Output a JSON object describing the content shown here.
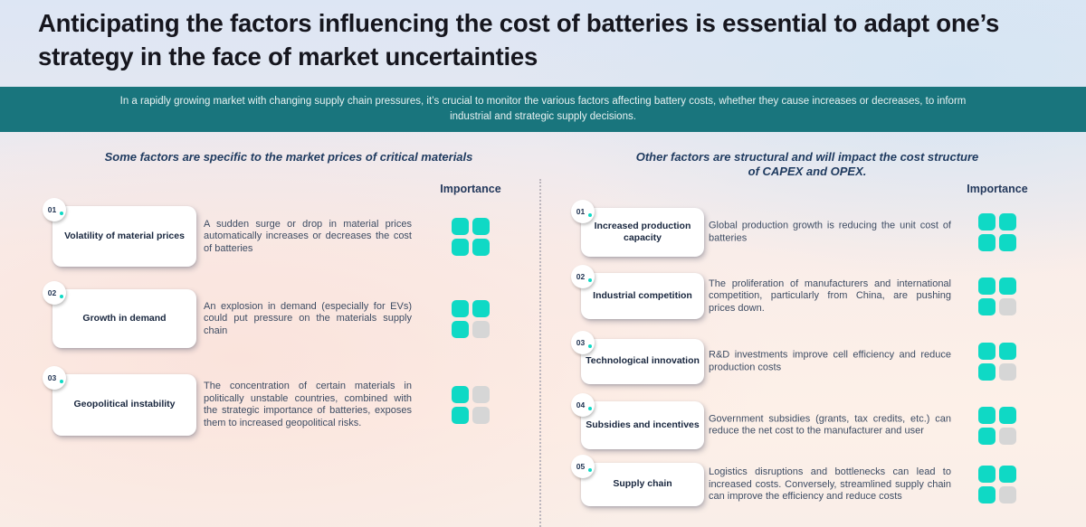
{
  "slide": {
    "title": "Anticipating the factors influencing the cost of batteries is essential to adapt one’s strategy in the face of market uncertainties",
    "banner": "In a rapidly growing market with changing supply chain pressures, it’s crucial to monitor the various factors affecting battery costs, whether they cause increases or decreases, to inform industrial and strategic supply decisions."
  },
  "columns": [
    {
      "header": "Some factors are specific to the market prices of critical materials",
      "importance_label": "Importance",
      "items": [
        {
          "number": "01",
          "label": "Volatility of material prices",
          "description": "A sudden surge or drop in material prices automatically increases or decreases the cost of batteries",
          "importance": [
            1,
            1,
            1,
            1
          ]
        },
        {
          "number": "02",
          "label": "Growth in demand",
          "description": "An explosion in demand (especially for EVs) could put pressure on the materials supply chain",
          "importance": [
            1,
            1,
            1,
            0
          ]
        },
        {
          "number": "03",
          "label": "Geopolitical instability",
          "description": "The concentration of certain materials in politically unstable countries, combined with the strategic importance of batteries, exposes them to increased geopolitical risks.",
          "importance": [
            1,
            0,
            1,
            0
          ]
        }
      ]
    },
    {
      "header": "Other factors are structural and will impact the cost structure of CAPEX and OPEX.",
      "importance_label": "Importance",
      "items": [
        {
          "number": "01",
          "label": "Increased production capacity",
          "description": "Global production growth is reducing the unit cost of batteries",
          "importance": [
            1,
            1,
            1,
            1
          ]
        },
        {
          "number": "02",
          "label": "Industrial competition",
          "description": "The proliferation of manufacturers and international competition, particularly from China, are pushing prices down.",
          "importance": [
            1,
            1,
            1,
            0
          ]
        },
        {
          "number": "03",
          "label": "Technological innovation",
          "description": "R&D investments improve cell efficiency and reduce production costs",
          "importance": [
            1,
            1,
            1,
            0
          ]
        },
        {
          "number": "04",
          "label": "Subsidies and incentives",
          "description": "Government subsidies (grants, tax credits, etc.) can reduce the net cost to the manufacturer and user",
          "importance": [
            1,
            1,
            1,
            0
          ]
        },
        {
          "number": "05",
          "label": "Supply chain",
          "description": "Logistics disruptions and bottlenecks can lead to increased costs. Conversely, streamlined supply chain can improve the efficiency and reduce costs",
          "importance": [
            1,
            1,
            1,
            0
          ]
        }
      ]
    }
  ],
  "colors": {
    "accent_teal": "#0FD9C5",
    "banner_teal": "#19757D",
    "inactive_gray": "#D6D6D6",
    "heading_navy": "#1E3A5F",
    "title_color": "#16161E"
  }
}
